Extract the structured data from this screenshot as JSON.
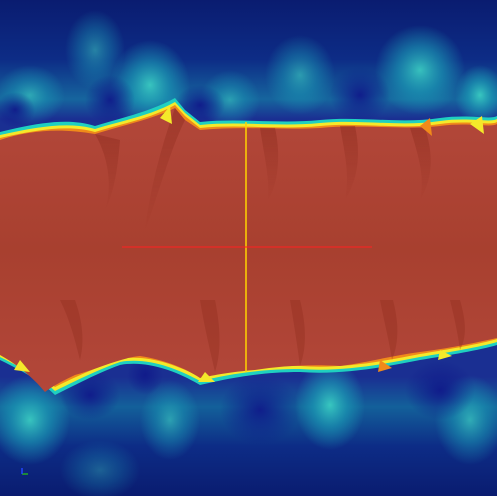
{
  "visualization": {
    "colormap": [
      "#0b1a78",
      "#1d3a9c",
      "#1fa7b8",
      "#49e0c8",
      "#f5e52a",
      "#f08a1a",
      "#d63a1a",
      "#b84a3c"
    ],
    "background_color": "#0b1f6e",
    "band_color": "#b84a3c",
    "crosshair": {
      "vertical_color": "#ffd400",
      "horizontal_color": "#ff2020"
    },
    "axes_icon": "axes-triad-icon"
  }
}
